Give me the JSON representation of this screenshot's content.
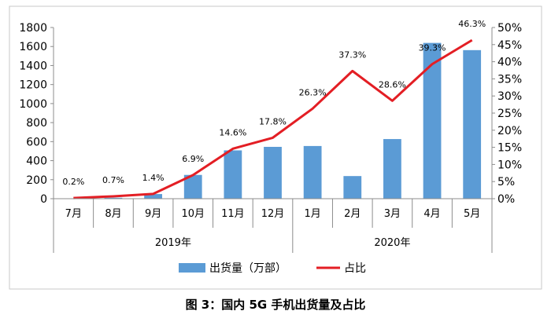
{
  "chart_data": {
    "type": "bar+line",
    "title": "图 3：国内 5G 手机出货量及占比",
    "categories": [
      "7月",
      "8月",
      "9月",
      "10月",
      "11月",
      "12月",
      "1月",
      "2月",
      "3月",
      "4月",
      "5月"
    ],
    "year_groups": [
      {
        "label": "2019年",
        "count": 6
      },
      {
        "label": "2020年",
        "count": 5
      }
    ],
    "series": [
      {
        "name": "出货量（万部）",
        "type": "bar",
        "axis": "left",
        "color": "#5b9bd5",
        "values": [
          2,
          10,
          49,
          250,
          508,
          545,
          554,
          238,
          627,
          1638,
          1562
        ]
      },
      {
        "name": "占比",
        "type": "line",
        "axis": "right",
        "color": "#e31e24",
        "values": [
          0.2,
          0.7,
          1.4,
          6.9,
          14.6,
          17.8,
          26.3,
          37.3,
          28.6,
          39.3,
          46.3
        ],
        "labels": [
          "0.2%",
          "0.7%",
          "1.4%",
          "6.9%",
          "14.6%",
          "17.8%",
          "26.3%",
          "37.3%",
          "28.6%",
          "39.3%",
          "46.3%"
        ]
      }
    ],
    "y_left": {
      "min": 0,
      "max": 1800,
      "ticks": [
        "0",
        "200",
        "400",
        "600",
        "800",
        "1000",
        "1200",
        "1400",
        "1600",
        "1800"
      ]
    },
    "y_right": {
      "min": 0,
      "max": 50,
      "ticks": [
        "0%",
        "5%",
        "10%",
        "15%",
        "20%",
        "25%",
        "30%",
        "35%",
        "40%",
        "45%",
        "50%"
      ]
    },
    "legend": {
      "position": "bottom-center",
      "items": [
        "出货量（万部）",
        "占比"
      ]
    },
    "grid": false
  }
}
